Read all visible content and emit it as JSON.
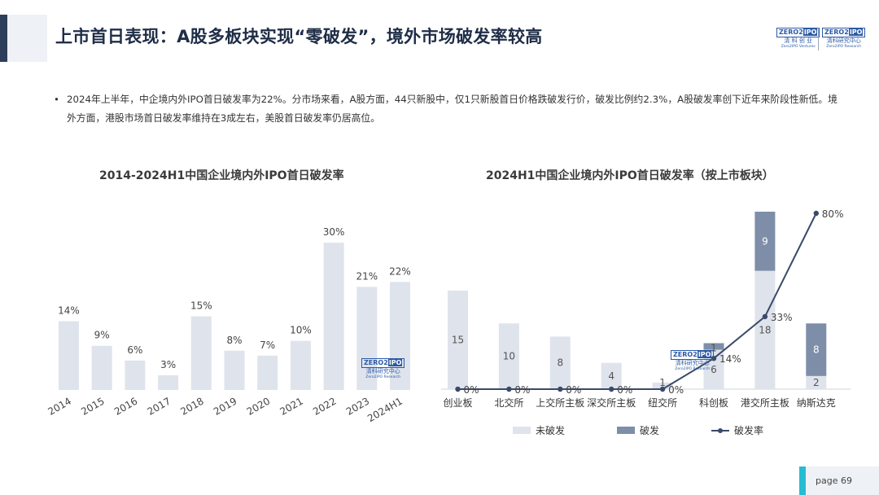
{
  "header": {
    "title": "上市首日表现：A股多板块实现“零破发”，境外市场破发率较高",
    "logo_main_a": "ZERO",
    "logo_main_b": "IPO",
    "logo_left_cn": "清 科 创 业",
    "logo_left_en": "Zero2IPO Ventures",
    "logo_right_cn": "清科研究中心",
    "logo_right_en": "Zero2IPO Research"
  },
  "summary": {
    "bullet": "•",
    "text": "2024年上半年，中企境内外IPO首日破发率为22%。分市场来看，A股方面，44只新股中，仅1只新股首日价格跌破发行价，破发比例约2.3%，A股破发率创下近年来阶段性新低。境外方面，港股市场首日破发率维持在3成左右，美股首日破发率仍居高位。"
  },
  "watermark": {
    "a": "ZERO",
    "b": "IPO",
    "cn": "清科研究中心",
    "en": "Zero2IPO Research"
  },
  "chart_data": [
    {
      "type": "bar",
      "title": "2014-2024H1中国企业境内外IPO首日破发率",
      "categories": [
        "2014",
        "2015",
        "2016",
        "2017",
        "2018",
        "2019",
        "2020",
        "2021",
        "2022",
        "2023",
        "2024H1"
      ],
      "values": [
        14,
        9,
        6,
        3,
        15,
        8,
        7,
        10,
        30,
        21,
        22
      ],
      "data_labels": [
        "14%",
        "9%",
        "6%",
        "3%",
        "15%",
        "8%",
        "7%",
        "10%",
        "30%",
        "21%",
        "22%"
      ],
      "ylim": [
        0,
        34
      ],
      "bar_color": "#dfe3ec",
      "grid": false
    },
    {
      "type": "bar",
      "stacked": true,
      "title": "2024H1中国企业境内外IPO首日破发率（按上市板块）",
      "categories": [
        "创业板",
        "北交所",
        "上交所主板",
        "深交所主板",
        "纽交所",
        "科创板",
        "港交所主板",
        "纳斯达克"
      ],
      "series": [
        {
          "name": "未破发",
          "values": [
            15,
            10,
            8,
            4,
            1,
            6,
            18,
            2
          ],
          "labels": [
            "15",
            "10",
            "8",
            "4",
            "1",
            "6",
            "18",
            "2"
          ],
          "color": "#dfe3ec"
        },
        {
          "name": "破发",
          "values": [
            0,
            0,
            0,
            0,
            0,
            1,
            9,
            8
          ],
          "labels": [
            "",
            "",
            "",
            "",
            "",
            "1",
            "9",
            "8"
          ],
          "color": "#7e8ea8"
        },
        {
          "name": "破发率",
          "type": "line",
          "values": [
            0,
            0,
            0,
            0,
            0,
            14,
            33,
            80
          ],
          "labels": [
            "0%",
            "0%",
            "0%",
            "0%",
            "0%",
            "14%",
            "33%",
            "80%"
          ],
          "color": "#3a4a6a"
        }
      ],
      "ylim": [
        0,
        27
      ],
      "y2lim": [
        0,
        80
      ],
      "legend": "bottom",
      "grid": false
    }
  ],
  "footer": {
    "page_label": "page 69"
  }
}
